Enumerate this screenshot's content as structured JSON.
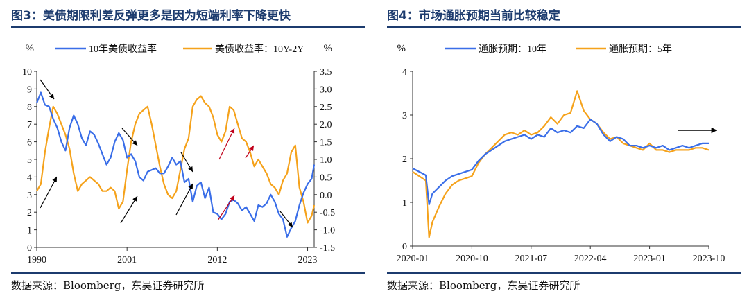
{
  "left_panel": {
    "title": "图3：美债期限利差反弹更多是因为短端利率下降更快",
    "source": "数据来源：Bloomberg，东吴证券研究所"
  },
  "right_panel": {
    "title": "图4：市场通胀预期当前比较稳定",
    "source": "数据来源：Bloomberg，东吴证券研究所"
  },
  "colors": {
    "series_blue": "#3a6ee8",
    "series_orange": "#f5a21b",
    "title_blue": "#1c3b6e",
    "arrow_black": "#000000",
    "arrow_red": "#c0001a"
  },
  "chart_data": [
    {
      "type": "line",
      "y_unit_left": "%",
      "y_unit_right": "%",
      "x_ticks": [
        "1990",
        "2001",
        "2012",
        "2023"
      ],
      "x_range": [
        1990,
        2023.8
      ],
      "ylim_left": [
        0,
        10
      ],
      "yticks_left": [
        "0",
        "1",
        "2",
        "3",
        "4",
        "5",
        "6",
        "7",
        "8",
        "9",
        "10"
      ],
      "ylim_right": [
        -1.5,
        3.5
      ],
      "yticks_right": [
        "-1.5",
        "-1.0",
        "-0.5",
        "0.0",
        "0.5",
        "1.0",
        "1.5",
        "2.0",
        "2.5",
        "3.0",
        "3.5"
      ],
      "legend_position": "top",
      "series": [
        {
          "name": "10年美债收益率",
          "axis": "left",
          "x": [
            1990,
            1990.5,
            1991,
            1991.5,
            1992,
            1992.5,
            1993,
            1993.5,
            1994,
            1994.5,
            1995,
            1995.5,
            1996,
            1996.5,
            1997,
            1997.5,
            1998,
            1998.5,
            1999,
            1999.5,
            2000,
            2000.5,
            2001,
            2001.5,
            2002,
            2002.5,
            2003,
            2003.5,
            2004,
            2004.5,
            2005,
            2005.5,
            2006,
            2006.5,
            2007,
            2007.5,
            2008,
            2008.5,
            2009,
            2009.5,
            2010,
            2010.5,
            2011,
            2011.5,
            2012,
            2012.5,
            2013,
            2013.5,
            2014,
            2014.5,
            2015,
            2015.5,
            2016,
            2016.5,
            2017,
            2017.5,
            2018,
            2018.5,
            2019,
            2019.5,
            2020,
            2020.5,
            2021,
            2021.5,
            2022,
            2022.5,
            2023,
            2023.5,
            2023.8
          ],
          "values": [
            8.2,
            8.8,
            8.1,
            8.0,
            7.3,
            6.8,
            6.0,
            5.5,
            6.8,
            7.5,
            7.0,
            6.2,
            5.8,
            6.6,
            6.4,
            5.9,
            5.3,
            4.7,
            5.1,
            6.0,
            6.5,
            6.1,
            5.1,
            5.3,
            4.9,
            4.0,
            3.8,
            4.3,
            4.4,
            4.5,
            4.2,
            4.2,
            4.6,
            5.1,
            4.7,
            4.9,
            3.7,
            3.9,
            2.6,
            3.5,
            3.7,
            2.8,
            3.4,
            2.0,
            1.9,
            1.6,
            1.9,
            2.6,
            2.7,
            2.5,
            2.1,
            2.3,
            1.9,
            1.5,
            2.4,
            2.3,
            2.5,
            3.0,
            2.6,
            1.9,
            1.6,
            0.6,
            1.1,
            1.5,
            2.4,
            3.1,
            3.6,
            3.9,
            4.7
          ]
        },
        {
          "name": "美债收益率：10Y-2Y",
          "axis": "right",
          "x": [
            1990,
            1990.5,
            1991,
            1991.5,
            1992,
            1992.5,
            1993,
            1993.5,
            1994,
            1994.5,
            1995,
            1995.5,
            1996,
            1996.5,
            1997,
            1997.5,
            1998,
            1998.5,
            1999,
            1999.5,
            2000,
            2000.5,
            2001,
            2001.5,
            2002,
            2002.5,
            2003,
            2003.5,
            2004,
            2004.5,
            2005,
            2005.5,
            2006,
            2006.5,
            2007,
            2007.5,
            2008,
            2008.5,
            2009,
            2009.5,
            2010,
            2010.5,
            2011,
            2011.5,
            2012,
            2012.5,
            2013,
            2013.5,
            2014,
            2014.5,
            2015,
            2015.5,
            2016,
            2016.5,
            2017,
            2017.5,
            2018,
            2018.5,
            2019,
            2019.5,
            2020,
            2020.5,
            2021,
            2021.5,
            2022,
            2022.5,
            2023,
            2023.5,
            2023.8
          ],
          "values": [
            0.1,
            0.3,
            1.2,
            1.9,
            2.5,
            2.3,
            2.0,
            1.7,
            1.3,
            0.6,
            0.1,
            0.3,
            0.4,
            0.5,
            0.4,
            0.3,
            0.1,
            0.1,
            0.2,
            0.1,
            -0.4,
            -0.2,
            0.7,
            1.5,
            2.0,
            2.3,
            2.4,
            2.5,
            2.0,
            1.4,
            0.8,
            0.3,
            0.0,
            -0.1,
            0.1,
            0.7,
            1.3,
            1.6,
            2.5,
            2.7,
            2.8,
            2.6,
            2.5,
            2.2,
            1.7,
            1.5,
            1.8,
            2.5,
            2.4,
            2.0,
            1.6,
            1.5,
            1.2,
            0.8,
            1.0,
            0.8,
            0.6,
            0.3,
            0.2,
            0.0,
            0.4,
            0.6,
            1.2,
            1.4,
            0.2,
            -0.2,
            -0.8,
            -0.6,
            -0.3
          ]
        }
      ]
    },
    {
      "type": "line",
      "y_unit_left": "%",
      "x_ticks": [
        "2020-01",
        "2020-10",
        "2021-07",
        "2022-04",
        "2023-01",
        "2023-10"
      ],
      "x_range": [
        0,
        45
      ],
      "ylim_left": [
        0,
        4
      ],
      "yticks_left": [
        "0",
        "1",
        "2",
        "3",
        "4"
      ],
      "legend_position": "top",
      "series": [
        {
          "name": "通胀预期：10年",
          "x": [
            0,
            1,
            2,
            2.5,
            3,
            4,
            5,
            6,
            7,
            8,
            9,
            10,
            11,
            12,
            13,
            14,
            15,
            16,
            17,
            18,
            19,
            20,
            21,
            22,
            23,
            24,
            25,
            26,
            27,
            28,
            29,
            30,
            31,
            32,
            33,
            34,
            35,
            36,
            37,
            38,
            39,
            40,
            41,
            42,
            43,
            44,
            45
          ],
          "values": [
            1.78,
            1.7,
            1.62,
            0.95,
            1.2,
            1.35,
            1.5,
            1.6,
            1.65,
            1.7,
            1.75,
            1.95,
            2.1,
            2.2,
            2.3,
            2.4,
            2.45,
            2.5,
            2.55,
            2.45,
            2.55,
            2.5,
            2.7,
            2.6,
            2.65,
            2.6,
            2.75,
            2.7,
            2.9,
            2.8,
            2.55,
            2.4,
            2.5,
            2.45,
            2.3,
            2.3,
            2.25,
            2.3,
            2.25,
            2.3,
            2.2,
            2.25,
            2.3,
            2.25,
            2.3,
            2.35,
            2.35
          ]
        },
        {
          "name": "通胀预期：5年",
          "x": [
            0,
            1,
            2,
            2.5,
            3,
            4,
            5,
            6,
            7,
            8,
            9,
            10,
            11,
            12,
            13,
            14,
            15,
            16,
            17,
            18,
            19,
            20,
            21,
            22,
            23,
            24,
            25,
            26,
            27,
            28,
            29,
            30,
            31,
            32,
            33,
            34,
            35,
            36,
            37,
            38,
            39,
            40,
            41,
            42,
            43,
            44,
            45
          ],
          "values": [
            1.7,
            1.6,
            1.5,
            0.2,
            0.55,
            0.9,
            1.2,
            1.4,
            1.5,
            1.55,
            1.6,
            1.9,
            2.1,
            2.25,
            2.4,
            2.55,
            2.6,
            2.55,
            2.65,
            2.55,
            2.6,
            2.75,
            2.95,
            2.8,
            3.0,
            3.05,
            3.55,
            3.1,
            2.9,
            2.8,
            2.6,
            2.45,
            2.5,
            2.35,
            2.3,
            2.25,
            2.2,
            2.35,
            2.2,
            2.2,
            2.15,
            2.2,
            2.2,
            2.2,
            2.25,
            2.25,
            2.2
          ]
        }
      ],
      "annotation": "arrow pointing right at 2.65"
    }
  ]
}
